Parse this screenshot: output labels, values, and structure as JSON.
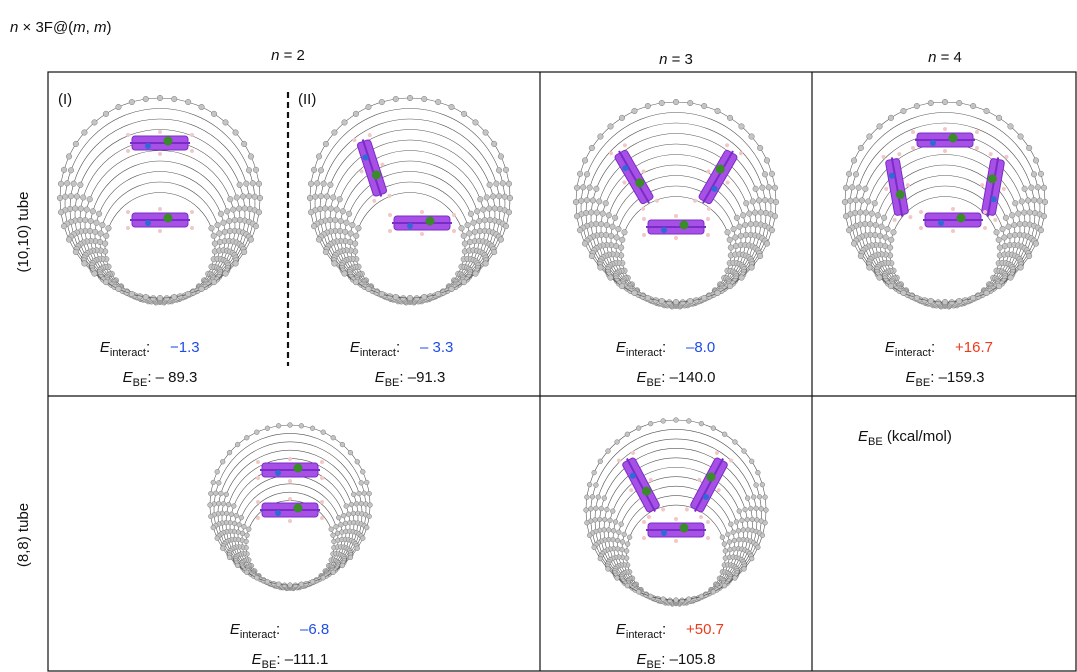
{
  "header": {
    "title_parts": [
      "n",
      " × 3F@(",
      "m",
      ", ",
      "m",
      ")"
    ]
  },
  "columns": [
    {
      "var": "n",
      "rest": " = 2"
    },
    {
      "var": "n",
      "rest": " = 3"
    },
    {
      "var": "n",
      "rest": " = 4"
    }
  ],
  "rows": [
    {
      "label": "(10,10) tube"
    },
    {
      "label": "(8,8) tube"
    }
  ],
  "symbols": {
    "E": "E",
    "interact": "interact",
    "BE": "BE",
    "sep": ": "
  },
  "panels": [
    {
      "label": "(I)",
      "interact": "−1.3",
      "interact_color": "#1f4de8",
      "be": "– 89.3"
    },
    {
      "label": "(II)",
      "interact": "– 3.3",
      "interact_color": "#1f4de8",
      "be": "–91.3"
    },
    {
      "interact": "–8.0",
      "interact_color": "#1f4de8",
      "be": "–140.0"
    },
    {
      "interact": "+16.7",
      "interact_color": "#ee3a1c",
      "be": "–159.3"
    },
    {
      "interact": "–6.8",
      "interact_color": "#1f4de8",
      "be": "–111.1"
    },
    {
      "interact": "+50.7",
      "interact_color": "#ee3a1c",
      "be": "–105.8"
    }
  ],
  "legend": {
    "unit": " (kcal/mol)"
  }
}
